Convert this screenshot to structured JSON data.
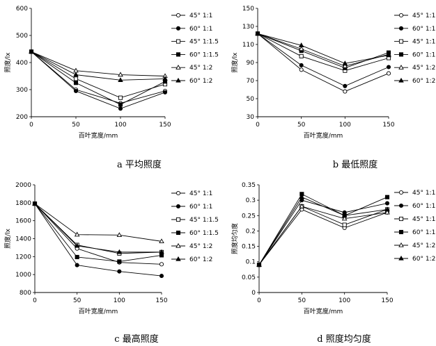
{
  "chart_data": [
    {
      "type": "line",
      "caption": "a  平均照度",
      "xlabel": "百叶宽度/mm",
      "ylabel": "照度/lx",
      "x": [
        0,
        50,
        100,
        150
      ],
      "xlim": [
        0,
        150
      ],
      "ylim": [
        200,
        600
      ],
      "yticks": [
        200,
        300,
        400,
        500,
        600
      ],
      "legend_position": "right",
      "series": [
        {
          "name": "45° 1:1",
          "values": [
            440,
            300,
            250,
            295
          ]
        },
        {
          "name": "60° 1:1",
          "values": [
            440,
            295,
            230,
            290
          ]
        },
        {
          "name": "45° 1:1.5",
          "values": [
            440,
            340,
            270,
            320
          ]
        },
        {
          "name": "60° 1:1.5",
          "values": [
            440,
            325,
            245,
            330
          ]
        },
        {
          "name": "45° 1:2",
          "values": [
            440,
            370,
            355,
            350
          ]
        },
        {
          "name": "60° 1:2",
          "values": [
            440,
            355,
            335,
            340
          ]
        }
      ]
    },
    {
      "type": "line",
      "caption": "b  最低照度",
      "xlabel": "百叶宽度/mm",
      "ylabel": "照度/lx",
      "x": [
        0,
        50,
        100,
        150
      ],
      "xlim": [
        0,
        150
      ],
      "ylim": [
        30,
        150
      ],
      "yticks": [
        30,
        50,
        70,
        90,
        110,
        130,
        150
      ],
      "legend_position": "right",
      "series": [
        {
          "name": "45° 1:1",
          "values": [
            122,
            82,
            58,
            78
          ]
        },
        {
          "name": "60° 1:1",
          "values": [
            122,
            87,
            64,
            85
          ]
        },
        {
          "name": "45° 1:1.5",
          "values": [
            122,
            97,
            81,
            95
          ]
        },
        {
          "name": "60° 1:1.5",
          "values": [
            122,
            103,
            84,
            101
          ]
        },
        {
          "name": "45° 1:2",
          "values": [
            122,
            105,
            86,
            99
          ]
        },
        {
          "name": "60° 1:2",
          "values": [
            122,
            109,
            89,
            98
          ]
        }
      ]
    },
    {
      "type": "line",
      "caption": "c  最高照度",
      "xlabel": "百叶宽度/mm",
      "ylabel": "照度/lx",
      "x": [
        0,
        50,
        100,
        150
      ],
      "xlim": [
        0,
        150
      ],
      "ylim": [
        800,
        2000
      ],
      "yticks": [
        800,
        1000,
        1200,
        1400,
        1600,
        1800,
        2000
      ],
      "legend_position": "right",
      "series": [
        {
          "name": "45° 1:1",
          "values": [
            1790,
            1290,
            1135,
            1115
          ]
        },
        {
          "name": "60° 1:1",
          "values": [
            1790,
            1105,
            1035,
            985
          ]
        },
        {
          "name": "45° 1:1.5",
          "values": [
            1790,
            1330,
            1235,
            1250
          ]
        },
        {
          "name": "60° 1:1.5",
          "values": [
            1790,
            1195,
            1145,
            1215
          ]
        },
        {
          "name": "45° 1:2",
          "values": [
            1790,
            1445,
            1440,
            1370
          ]
        },
        {
          "name": "60° 1:2",
          "values": [
            1790,
            1320,
            1250,
            1250
          ]
        }
      ]
    },
    {
      "type": "line",
      "caption": "d  照度均匀度",
      "xlabel": "百叶宽度/mm",
      "ylabel": "照度均匀度",
      "x": [
        0,
        50,
        100,
        150
      ],
      "xlim": [
        0,
        150
      ],
      "ylim": [
        0,
        0.35
      ],
      "yticks": [
        0,
        0.05,
        0.1,
        0.15,
        0.2,
        0.25,
        0.3,
        0.35
      ],
      "legend_position": "right",
      "series": [
        {
          "name": "45° 1:1",
          "values": [
            0.09,
            0.27,
            0.21,
            0.26
          ]
        },
        {
          "name": "60° 1:1",
          "values": [
            0.09,
            0.3,
            0.26,
            0.29
          ]
        },
        {
          "name": "45° 1:1.5",
          "values": [
            0.09,
            0.28,
            0.22,
            0.27
          ]
        },
        {
          "name": "60° 1:1.5",
          "values": [
            0.09,
            0.32,
            0.25,
            0.31
          ]
        },
        {
          "name": "45° 1:2",
          "values": [
            0.09,
            0.28,
            0.24,
            0.26
          ]
        },
        {
          "name": "60° 1:2",
          "values": [
            0.09,
            0.31,
            0.25,
            0.27
          ]
        }
      ]
    }
  ]
}
